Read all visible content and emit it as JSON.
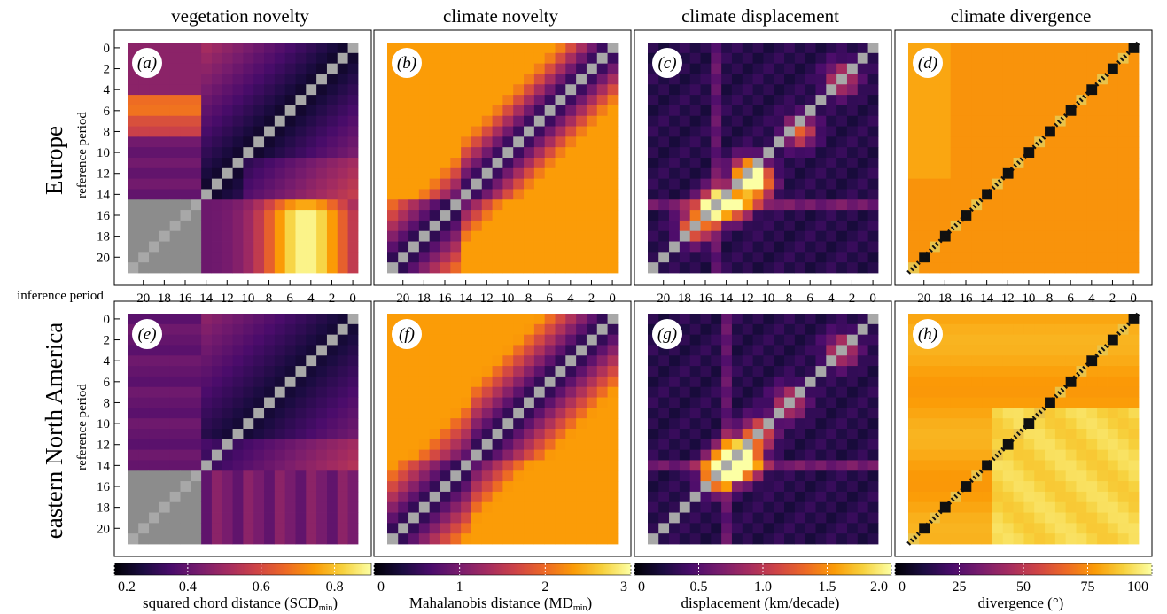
{
  "chart_data": {
    "type": "heatmap",
    "column_titles": [
      "vegetation novelty",
      "climate novelty",
      "climate displacement",
      "climate divergence"
    ],
    "row_titles": [
      "Europe",
      "eastern North America"
    ],
    "ylabel": "reference period",
    "xlabel": "inference period",
    "ticks": [
      0,
      2,
      4,
      6,
      8,
      10,
      12,
      14,
      16,
      18,
      20
    ],
    "x_reversed": true,
    "periods": 22,
    "veg_missing_from_period": 15,
    "panels": [
      {
        "label": "a",
        "row": 0,
        "col": 0,
        "kind": "veg",
        "region": "europe"
      },
      {
        "label": "b",
        "row": 0,
        "col": 1,
        "kind": "clim",
        "region": "europe"
      },
      {
        "label": "c",
        "row": 0,
        "col": 2,
        "kind": "disp",
        "region": "europe"
      },
      {
        "label": "d",
        "row": 0,
        "col": 3,
        "kind": "div",
        "region": "europe"
      },
      {
        "label": "e",
        "row": 1,
        "col": 0,
        "kind": "veg",
        "region": "ena"
      },
      {
        "label": "f",
        "row": 1,
        "col": 1,
        "kind": "clim",
        "region": "ena"
      },
      {
        "label": "g",
        "row": 1,
        "col": 2,
        "kind": "disp",
        "region": "ena"
      },
      {
        "label": "h",
        "row": 1,
        "col": 3,
        "kind": "div",
        "region": "ena"
      }
    ],
    "colorbars": [
      {
        "label_main": "squared chord distance (SCD",
        "label_sub": "min",
        "label_end": ")",
        "ticks": [
          "0.2",
          "0.4",
          "0.6",
          "0.8"
        ],
        "range": [
          0.2,
          0.9
        ]
      },
      {
        "label_main": "Mahalanobis distance (MD",
        "label_sub": "min",
        "label_end": ")",
        "ticks": [
          "0",
          "1",
          "2",
          "3"
        ],
        "range": [
          0,
          3
        ]
      },
      {
        "label_main": "displacement (km/decade)",
        "label_sub": "",
        "label_end": "",
        "ticks": [
          "0",
          "0.5",
          "1.0",
          "1.5",
          "2.0"
        ],
        "range": [
          0,
          2
        ]
      },
      {
        "label_main": "divergence (°)",
        "label_sub": "",
        "label_end": "",
        "ticks": [
          "0",
          "25",
          "50",
          "75",
          "100"
        ],
        "range": [
          0,
          100
        ]
      }
    ],
    "colormap": [
      "#000004",
      "#1b0c41",
      "#4a0c6b",
      "#781c6d",
      "#a52c60",
      "#cf4446",
      "#ed6925",
      "#fb9b06",
      "#f7d13d",
      "#fcffa4"
    ],
    "missing_color": "#8c8c8c",
    "diagonal_color": "#a8a8a8"
  }
}
